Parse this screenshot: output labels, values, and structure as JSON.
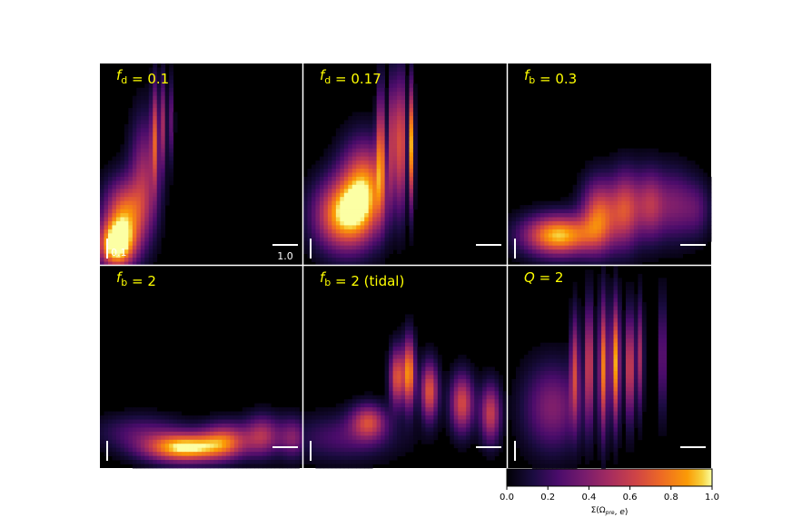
{
  "chart_data": {
    "type": "heatmap",
    "layout": {
      "rows": 2,
      "cols": 3
    },
    "colormap": "inferno",
    "background_color": "#000000",
    "label_color": "#ffff00",
    "panels": [
      {
        "label": "f_d = 0.1",
        "label_parts": [
          {
            "t": "f",
            "i": true
          },
          {
            "t": "d",
            "sub": true
          },
          {
            "t": " = 0.1"
          }
        ],
        "scalebar_v_label": "0.1",
        "scalebar_h_label": "1.0",
        "blobs": [
          {
            "x": 0.08,
            "y": 0.1,
            "sx": 0.06,
            "sy": 0.08,
            "a": 1.0
          },
          {
            "x": 0.12,
            "y": 0.25,
            "sx": 0.07,
            "sy": 0.12,
            "a": 0.75
          },
          {
            "x": 0.22,
            "y": 0.45,
            "sx": 0.05,
            "sy": 0.2,
            "a": 0.45
          },
          {
            "x": 0.27,
            "y": 0.65,
            "sx": 0.012,
            "sy": 0.18,
            "a": 0.55
          },
          {
            "x": 0.31,
            "y": 0.7,
            "sx": 0.01,
            "sy": 0.16,
            "a": 0.45
          },
          {
            "x": 0.35,
            "y": 0.72,
            "sx": 0.01,
            "sy": 0.14,
            "a": 0.3
          }
        ]
      },
      {
        "label": "f_d = 0.17",
        "label_parts": [
          {
            "t": "f",
            "i": true
          },
          {
            "t": "d",
            "sub": true
          },
          {
            "t": " = 0.17"
          }
        ],
        "scalebar_v_label": "",
        "scalebar_h_label": "",
        "blobs": [
          {
            "x": 0.2,
            "y": 0.25,
            "sx": 0.1,
            "sy": 0.12,
            "a": 0.9
          },
          {
            "x": 0.3,
            "y": 0.4,
            "sx": 0.08,
            "sy": 0.15,
            "a": 0.75
          },
          {
            "x": 0.38,
            "y": 0.6,
            "sx": 0.014,
            "sy": 0.2,
            "a": 0.65
          },
          {
            "x": 0.44,
            "y": 0.65,
            "sx": 0.012,
            "sy": 0.2,
            "a": 0.7
          },
          {
            "x": 0.48,
            "y": 0.62,
            "sx": 0.012,
            "sy": 0.22,
            "a": 0.85
          },
          {
            "x": 0.53,
            "y": 0.6,
            "sx": 0.01,
            "sy": 0.2,
            "a": 0.9
          }
        ]
      },
      {
        "label": "f_b = 0.3",
        "label_parts": [
          {
            "t": "f",
            "i": true
          },
          {
            "t": "b",
            "sub": true
          },
          {
            "t": " = 0.3"
          }
        ],
        "scalebar_v_label": "",
        "scalebar_h_label": "",
        "blobs": [
          {
            "x": 0.25,
            "y": 0.15,
            "sx": 0.12,
            "sy": 0.07,
            "a": 0.95
          },
          {
            "x": 0.45,
            "y": 0.25,
            "sx": 0.06,
            "sy": 0.12,
            "a": 0.7
          },
          {
            "x": 0.58,
            "y": 0.28,
            "sx": 0.05,
            "sy": 0.13,
            "a": 0.6
          },
          {
            "x": 0.7,
            "y": 0.3,
            "sx": 0.05,
            "sy": 0.12,
            "a": 0.5
          },
          {
            "x": 0.82,
            "y": 0.3,
            "sx": 0.06,
            "sy": 0.12,
            "a": 0.35
          },
          {
            "x": 0.93,
            "y": 0.28,
            "sx": 0.05,
            "sy": 0.1,
            "a": 0.25
          }
        ]
      },
      {
        "label": "f_b = 2",
        "label_parts": [
          {
            "t": "f",
            "i": true
          },
          {
            "t": "b",
            "sub": true
          },
          {
            "t": " = 2"
          }
        ],
        "scalebar_v_label": "",
        "scalebar_h_label": "",
        "blobs": [
          {
            "x": 0.42,
            "y": 0.1,
            "sx": 0.14,
            "sy": 0.05,
            "a": 1.0
          },
          {
            "x": 0.62,
            "y": 0.14,
            "sx": 0.08,
            "sy": 0.06,
            "a": 0.55
          },
          {
            "x": 0.8,
            "y": 0.16,
            "sx": 0.06,
            "sy": 0.07,
            "a": 0.5
          },
          {
            "x": 0.95,
            "y": 0.15,
            "sx": 0.05,
            "sy": 0.07,
            "a": 0.4
          },
          {
            "x": 0.2,
            "y": 0.18,
            "sx": 0.15,
            "sy": 0.06,
            "a": 0.25
          }
        ]
      },
      {
        "label": "f_b = 2 (tidal)",
        "label_parts": [
          {
            "t": "f",
            "i": true
          },
          {
            "t": "b",
            "sub": true
          },
          {
            "t": " = 2 (tidal)"
          }
        ],
        "scalebar_v_label": "",
        "scalebar_h_label": "",
        "blobs": [
          {
            "x": 0.32,
            "y": 0.23,
            "sx": 0.06,
            "sy": 0.06,
            "a": 0.55
          },
          {
            "x": 0.46,
            "y": 0.45,
            "sx": 0.025,
            "sy": 0.1,
            "a": 0.7
          },
          {
            "x": 0.52,
            "y": 0.47,
            "sx": 0.02,
            "sy": 0.12,
            "a": 0.85
          },
          {
            "x": 0.62,
            "y": 0.38,
            "sx": 0.03,
            "sy": 0.1,
            "a": 0.7
          },
          {
            "x": 0.78,
            "y": 0.32,
            "sx": 0.04,
            "sy": 0.1,
            "a": 0.65
          },
          {
            "x": 0.92,
            "y": 0.27,
            "sx": 0.035,
            "sy": 0.1,
            "a": 0.6
          },
          {
            "x": 0.2,
            "y": 0.15,
            "sx": 0.18,
            "sy": 0.08,
            "a": 0.25
          }
        ]
      },
      {
        "label": "Q = 2",
        "label_parts": [
          {
            "t": "Q",
            "i": true
          },
          {
            "t": " = 2"
          }
        ],
        "scalebar_v_label": "",
        "scalebar_h_label": "",
        "blobs": [
          {
            "x": 0.22,
            "y": 0.3,
            "sx": 0.1,
            "sy": 0.15,
            "a": 0.4
          },
          {
            "x": 0.33,
            "y": 0.5,
            "sx": 0.015,
            "sy": 0.18,
            "a": 0.55
          },
          {
            "x": 0.4,
            "y": 0.52,
            "sx": 0.015,
            "sy": 0.2,
            "a": 0.65
          },
          {
            "x": 0.47,
            "y": 0.5,
            "sx": 0.015,
            "sy": 0.22,
            "a": 0.8
          },
          {
            "x": 0.53,
            "y": 0.52,
            "sx": 0.015,
            "sy": 0.2,
            "a": 0.9
          },
          {
            "x": 0.6,
            "y": 0.5,
            "sx": 0.015,
            "sy": 0.18,
            "a": 0.7
          },
          {
            "x": 0.65,
            "y": 0.55,
            "sx": 0.012,
            "sy": 0.18,
            "a": 0.5
          },
          {
            "x": 0.76,
            "y": 0.55,
            "sx": 0.01,
            "sy": 0.2,
            "a": 0.45
          }
        ]
      }
    ],
    "colorbar": {
      "label": "Σ(Ω_pre, e)",
      "label_parts": [
        {
          "t": "Σ("
        },
        {
          "t": "Ω"
        },
        {
          "t": "pre",
          "sub": true,
          "i": true
        },
        {
          "t": ", "
        },
        {
          "t": "e",
          "i": true
        },
        {
          "t": ")"
        }
      ],
      "range": [
        0.0,
        1.0
      ],
      "ticks": [
        "0.0",
        "0.2",
        "0.4",
        "0.6",
        "0.8",
        "1.0"
      ]
    }
  }
}
